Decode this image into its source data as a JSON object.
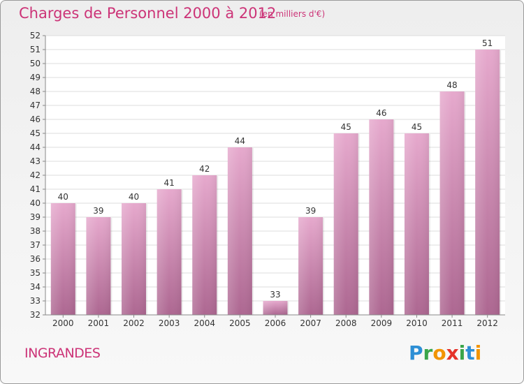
{
  "header": {
    "title": "Charges de Personnel 2000 à 2012",
    "subtitle": "(en milliers d'€)"
  },
  "footer": {
    "location": "INGRANDES",
    "logo": "Proxiti"
  },
  "colors": {
    "title": "#cc3377",
    "bar_top": "#e4a6cc",
    "bar_bottom": "#b06a95"
  },
  "chart_data": {
    "type": "bar",
    "title": "Charges de Personnel 2000 à 2012",
    "subtitle": "(en milliers d'€)",
    "categories": [
      "2000",
      "2001",
      "2002",
      "2003",
      "2004",
      "2005",
      "2006",
      "2007",
      "2008",
      "2009",
      "2010",
      "2011",
      "2012"
    ],
    "values": [
      40,
      39,
      40,
      41,
      42,
      44,
      33,
      39,
      45,
      46,
      45,
      48,
      51
    ],
    "ylim": [
      32,
      52
    ],
    "yticks": [
      32,
      33,
      34,
      35,
      36,
      37,
      38,
      39,
      40,
      41,
      42,
      43,
      44,
      45,
      46,
      47,
      48,
      49,
      50,
      51,
      52
    ],
    "grid": true,
    "legend": "none"
  }
}
